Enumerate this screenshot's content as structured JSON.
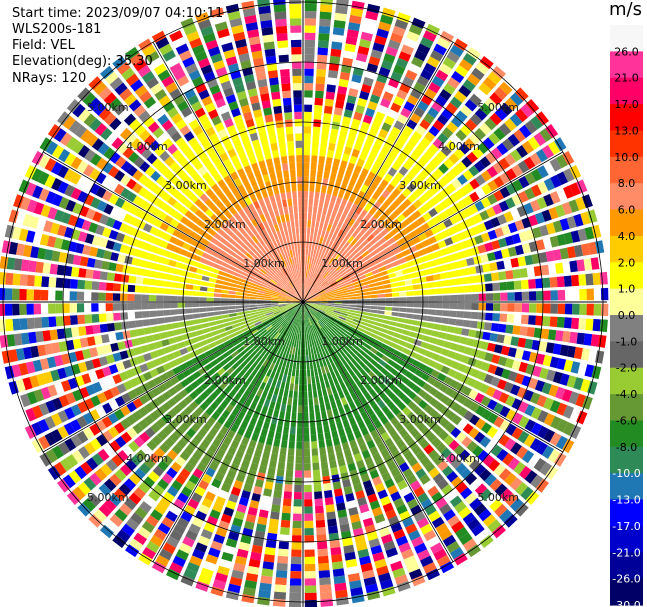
{
  "header": {
    "start_time": "Start time: 2023/09/07 04:10:11",
    "instrument": "WLS200s-181",
    "field": "Field: VEL",
    "elevation": "Elevation(deg): 35.30",
    "nrays": "NRays: 120"
  },
  "colorbar": {
    "unit": "m/s",
    "ticks": [
      "26.0",
      "21.0",
      "17.0",
      "13.0",
      "10.0",
      "8.0",
      "6.0",
      "4.0",
      "2.0",
      "1.0",
      "0.0",
      "-1.0",
      "-2.0",
      "-4.0",
      "-6.0",
      "-8.0",
      "-10.0",
      "-13.0",
      "-17.0",
      "-21.0",
      "-26.0",
      "-30.0"
    ],
    "colors": [
      "#f7f7f7",
      "#ff3399",
      "#ff0066",
      "#ff0000",
      "#ff3300",
      "#ff6633",
      "#ff8c66",
      "#ff9900",
      "#ffcc00",
      "#ffff00",
      "#ffff99",
      "#808080",
      "#666666",
      "#99cc33",
      "#669933",
      "#228b22",
      "#2e8b57",
      "#1f77b4",
      "#0000ff",
      "#0000cc",
      "#000099",
      "#000066"
    ]
  },
  "range_labels": [
    "1.00km",
    "2.00km",
    "3.00km",
    "4.00km",
    "5.00km"
  ],
  "chart_data": {
    "type": "heatmap",
    "projection": "polar PPI",
    "field": "VEL",
    "unit": "m/s",
    "color_scale_min": -30.0,
    "color_scale_max": 26.0,
    "nrays": 120,
    "range_rings_km": [
      1.0,
      2.0,
      3.0,
      4.0,
      5.0
    ],
    "max_range_km": 5.0,
    "velocity_structure": [
      {
        "sector": "north",
        "range_km": [
          0,
          1.8
        ],
        "typical_vel": 6.5
      },
      {
        "sector": "north",
        "range_km": [
          1.8,
          2.5
        ],
        "typical_vel": 4.5
      },
      {
        "sector": "north",
        "range_km": [
          2.5,
          3.5
        ],
        "typical_vel": 1.5
      },
      {
        "sector": "east-west",
        "range_km": [
          0,
          2.8
        ],
        "typical_vel": -0.5
      },
      {
        "sector": "south",
        "range_km": [
          0,
          2.8
        ],
        "typical_vel": -6.5
      },
      {
        "sector": "south",
        "range_km": [
          2.8,
          3.5
        ],
        "typical_vel": -5.0
      },
      {
        "sector": "all",
        "range_km": [
          3.5,
          5.0
        ],
        "typical_vel": "noise"
      }
    ]
  }
}
